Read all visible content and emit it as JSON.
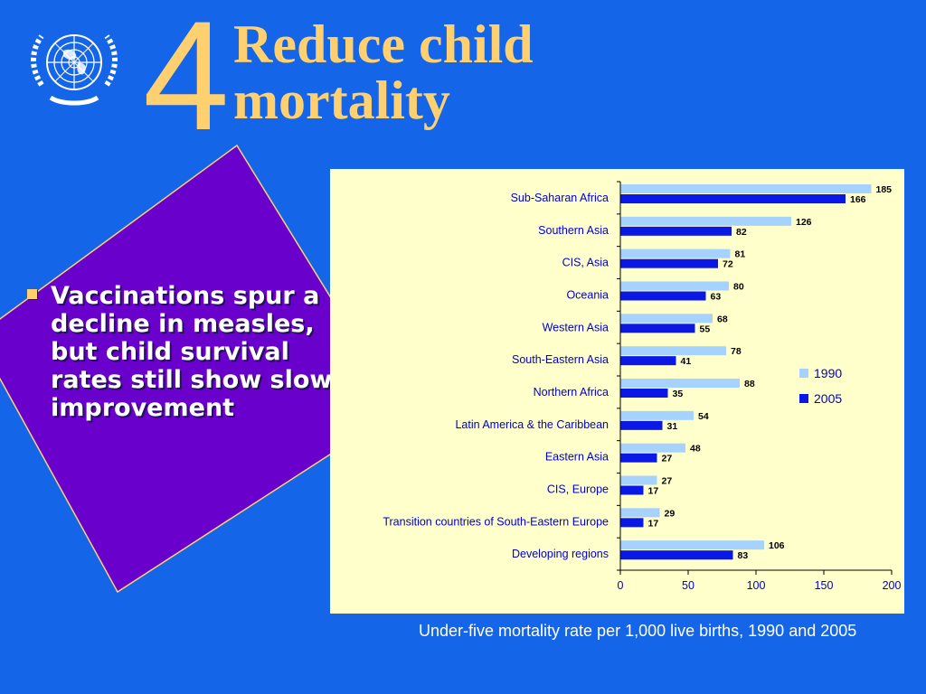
{
  "slide": {
    "goal_number": "4",
    "title": "Reduce child mortality",
    "bullet": "Vaccinations spur a decline in measles, but child survival rates still show slow improvement",
    "caption": "Under-five mortality rate per 1,000 live births, 1990 and 2005"
  },
  "colors": {
    "background": "#1565e8",
    "title": "#ffd070",
    "diamond": "#6a00cc",
    "chart_background": "#ffffcc",
    "series_1990": "#a6d2ff",
    "series_2005": "#0a18e6",
    "label_text": "#0000cc"
  },
  "icons": {
    "logo": "un-emblem-icon"
  },
  "chart_data": {
    "type": "bar",
    "orientation": "horizontal",
    "categories": [
      "Sub-Saharan Africa",
      "Southern Asia",
      "CIS, Asia",
      "Oceania",
      "Western Asia",
      "South-Eastern Asia",
      "Northern Africa",
      "Latin America & the Caribbean",
      "Eastern Asia",
      "CIS, Europe",
      "Transition countries of South-Eastern Europe",
      "Developing regions"
    ],
    "series": [
      {
        "name": "1990",
        "color": "#a6d2ff",
        "values": [
          185,
          126,
          81,
          80,
          68,
          78,
          88,
          54,
          48,
          27,
          29,
          106
        ]
      },
      {
        "name": "2005",
        "color": "#0a18e6",
        "values": [
          166,
          82,
          72,
          63,
          55,
          41,
          35,
          31,
          27,
          17,
          17,
          83
        ]
      }
    ],
    "xlim": [
      0,
      200
    ],
    "xticks": [
      0,
      50,
      100,
      150,
      200
    ],
    "data_labels": true,
    "grid": false,
    "legend_position": "right"
  }
}
